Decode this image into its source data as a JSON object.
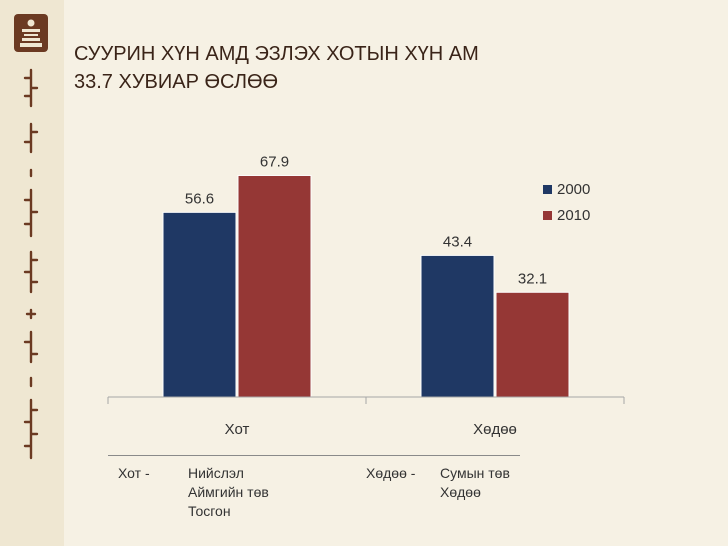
{
  "title": {
    "line1": "СУУРИН ХҮН АМД ЭЗЛЭХ ХОТЫН ХҮН АМ",
    "line2": "33.7 ХУВИАР ӨСЛӨӨ"
  },
  "chart_data": {
    "type": "bar",
    "categories": [
      "Хот",
      "Хөдөө"
    ],
    "series": [
      {
        "name": "2000",
        "values": [
          56.6,
          43.4
        ],
        "color": "#1f3864"
      },
      {
        "name": "2010",
        "values": [
          67.9,
          32.1
        ],
        "color": "#953735"
      }
    ],
    "data_labels": [
      [
        "56.6",
        "43.4"
      ],
      [
        "67.9",
        "32.1"
      ]
    ],
    "ylim": [
      0,
      80
    ],
    "grid": false,
    "legend_position": "top-right"
  },
  "notes": {
    "hot_label": "Хот -",
    "hot_items": [
      "Нийслэл",
      "Аймгийн төв",
      "Тосгон"
    ],
    "hodoo_label": "Хөдөө -",
    "hodoo_items": [
      "Сумын төв",
      "Хөдөө"
    ]
  },
  "colors": {
    "background": "#f6f1e4",
    "sidebar": "#efe7d2",
    "title": "#3a2418",
    "series_2000": "#1f3864",
    "series_2010": "#953735"
  }
}
